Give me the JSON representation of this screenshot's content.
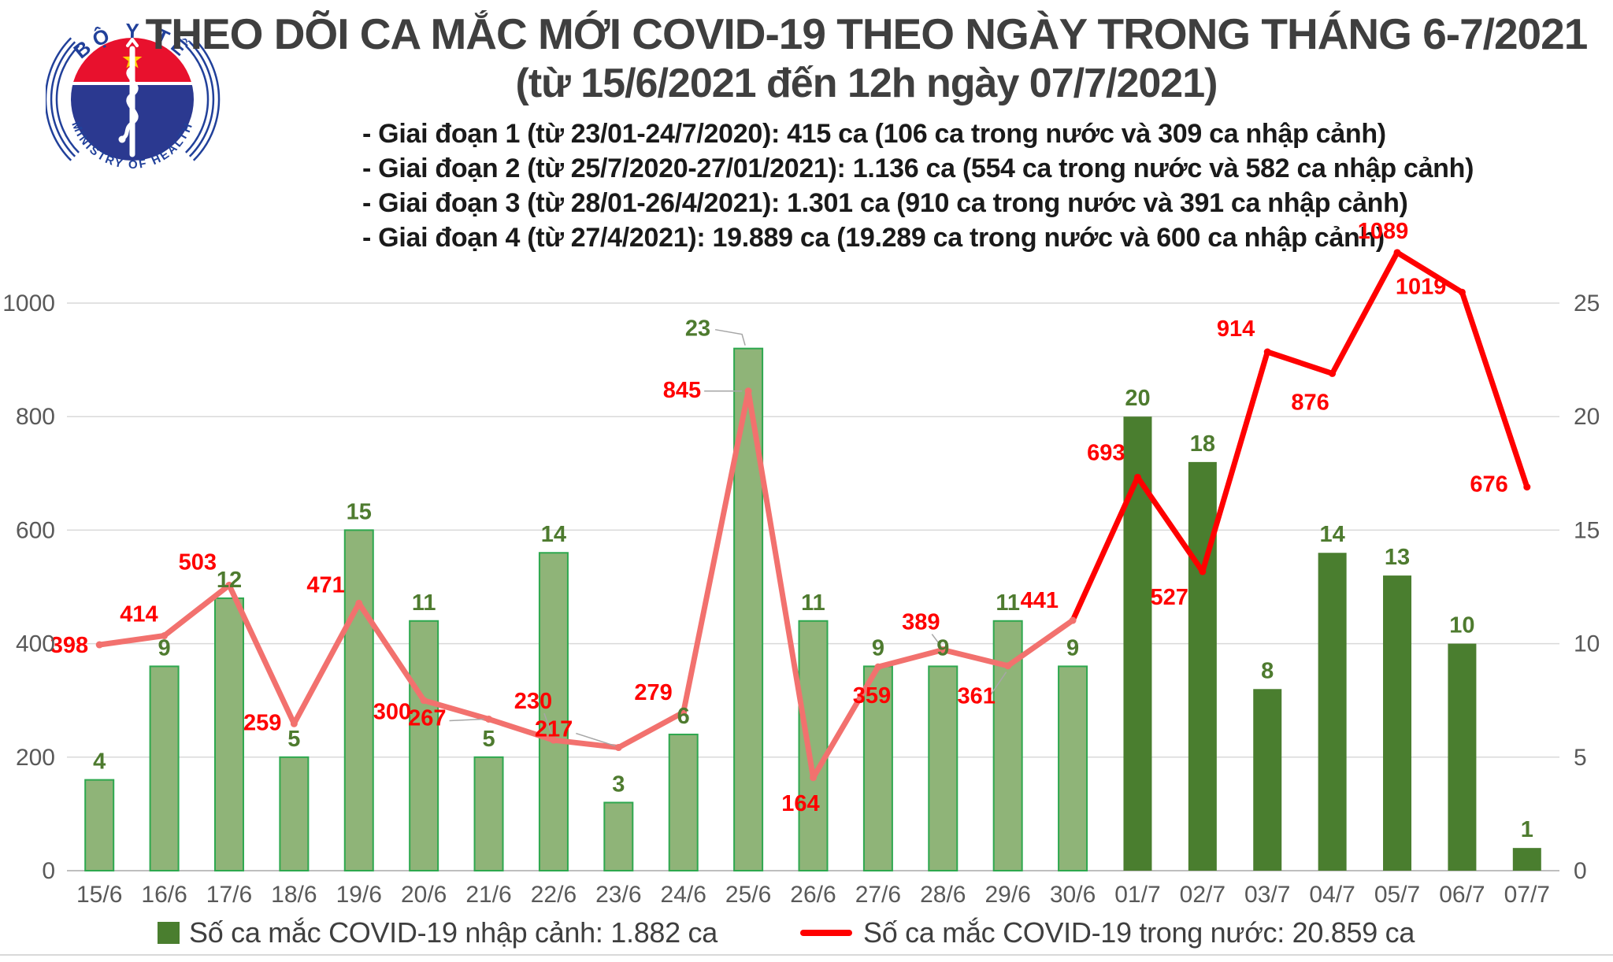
{
  "logo": {
    "top_text": "BỘ Y TẾ",
    "bottom_text": "MINISTRY OF HEALTH",
    "blue": "#21409A",
    "red": "#E8112D",
    "star_yellow": "#FFD200"
  },
  "header": {
    "title": "THEO DÕI CA MẮC MỚI COVID-19 THEO NGÀY TRONG THÁNG 6-7/2021",
    "subtitle": "(từ 15/6/2021 đến 12h ngày 07/7/2021)",
    "phases": [
      "- Giai đoạn 1 (từ 23/01-24/7/2020): 415 ca (106 ca trong nước và 309 ca nhập cảnh)",
      "- Giai đoạn 2 (từ 25/7/2020-27/01/2021): 1.136 ca (554 ca trong nước và 582 ca nhập cảnh)",
      "- Giai đoạn 3 (từ 28/01-26/4/2021): 1.301 ca (910 ca trong nước và 391 ca nhập cảnh)",
      "- Giai đoạn 4 (từ 27/4/2021): 19.889 ca (19.289 ca trong nước và 600 ca nhập cảnh)"
    ]
  },
  "legend": {
    "imported": "Số ca mắc COVID-19 nhập cảnh: 1.882 ca",
    "domestic": "Số ca mắc COVID-19 trong nước: 20.859 ca"
  },
  "chart_data": {
    "type": "combo",
    "title": "THEO DÕI CA MẮC MỚI COVID-19 THEO NGÀY TRONG THÁNG 6-7/2021",
    "categories": [
      "15/6",
      "16/6",
      "17/6",
      "18/6",
      "19/6",
      "20/6",
      "21/6",
      "22/6",
      "23/6",
      "24/6",
      "25/6",
      "26/6",
      "27/6",
      "28/6",
      "29/6",
      "30/6",
      "01/7",
      "02/7",
      "03/7",
      "04/7",
      "05/7",
      "06/7",
      "07/7"
    ],
    "series": [
      {
        "name": "Số ca mắc COVID-19 nhập cảnh",
        "type": "bar",
        "axis": "right",
        "values": [
          4,
          9,
          12,
          5,
          15,
          11,
          5,
          14,
          3,
          6,
          23,
          11,
          9,
          9,
          11,
          9,
          20,
          18,
          8,
          14,
          13,
          10,
          1
        ]
      },
      {
        "name": "Số ca mắc COVID-19 trong nước",
        "type": "line",
        "axis": "left",
        "values": [
          398,
          414,
          503,
          259,
          471,
          300,
          267,
          230,
          217,
          279,
          845,
          164,
          359,
          389,
          361,
          441,
          693,
          527,
          914,
          876,
          1089,
          1019,
          676
        ]
      }
    ],
    "left_axis": {
      "min": 0,
      "max": 1000,
      "ticks": [
        0,
        200,
        400,
        600,
        800,
        1000
      ]
    },
    "right_axis": {
      "min": 0,
      "max": 25,
      "ticks": [
        0,
        5,
        10,
        15,
        20,
        25
      ]
    },
    "grid": true,
    "legend_position": "bottom",
    "style": {
      "bar_fill_light": "#8FB478",
      "bar_stroke_light": "#2EA84F",
      "bar_fill_dark": "#4A7E2F",
      "line_color_early": "#F2716E",
      "line_color_late": "#FF0000",
      "bar_label_color": "#4E7B2F",
      "line_label_color": "#FF0000",
      "axis_text_color": "#595959",
      "grid_color": "#D9D9D9",
      "bar_style_switch_index": 16,
      "line_style_switch_index": 15
    }
  }
}
